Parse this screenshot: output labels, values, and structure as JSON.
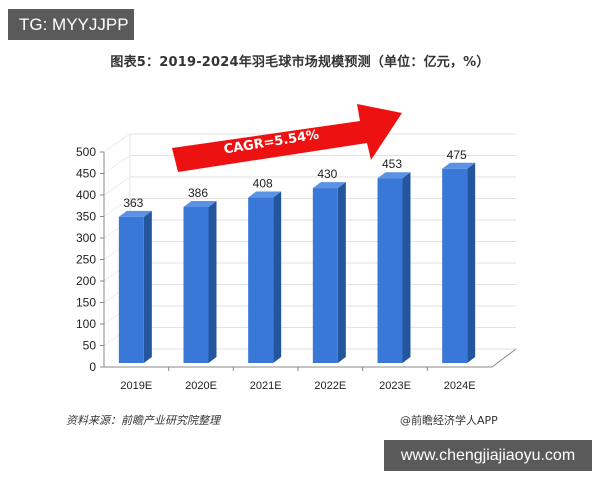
{
  "badges": {
    "top_left": "TG: MYYJJPP",
    "bottom_right": "www.chengjiajiaoyu.com"
  },
  "footer": {
    "source": "资料来源：前瞻产业研究院整理",
    "brand": "@前瞻经济学人APP"
  },
  "chart_data": {
    "type": "bar",
    "title": "图表5：2019-2024年羽毛球市场规模预测（单位：亿元，%）",
    "categories": [
      "2019E",
      "2020E",
      "2021E",
      "2022E",
      "2023E",
      "2024E"
    ],
    "values": [
      363,
      386,
      408,
      430,
      453,
      475
    ],
    "series": [
      {
        "name": "羽毛球市场规模",
        "values": [
          363,
          386,
          408,
          430,
          453,
          475
        ],
        "color": "#3a78d8"
      }
    ],
    "xlabel": "",
    "ylabel": "",
    "ylim": [
      0,
      500
    ],
    "yticks": [
      0,
      50,
      100,
      150,
      200,
      250,
      300,
      350,
      400,
      450,
      500
    ],
    "grid": true,
    "style": "3d-column",
    "legend": null,
    "annotations": [
      {
        "text": "CAGR=5.54%",
        "shape": "red-arrow",
        "color": "#ee1111"
      }
    ],
    "unit": "亿元"
  },
  "colors": {
    "bar_front": "#3a78d8",
    "bar_side": "#24569e",
    "bar_top": "#5a92e6",
    "arrow": "#ee1111",
    "badge_bg": "#5a5a5a"
  }
}
